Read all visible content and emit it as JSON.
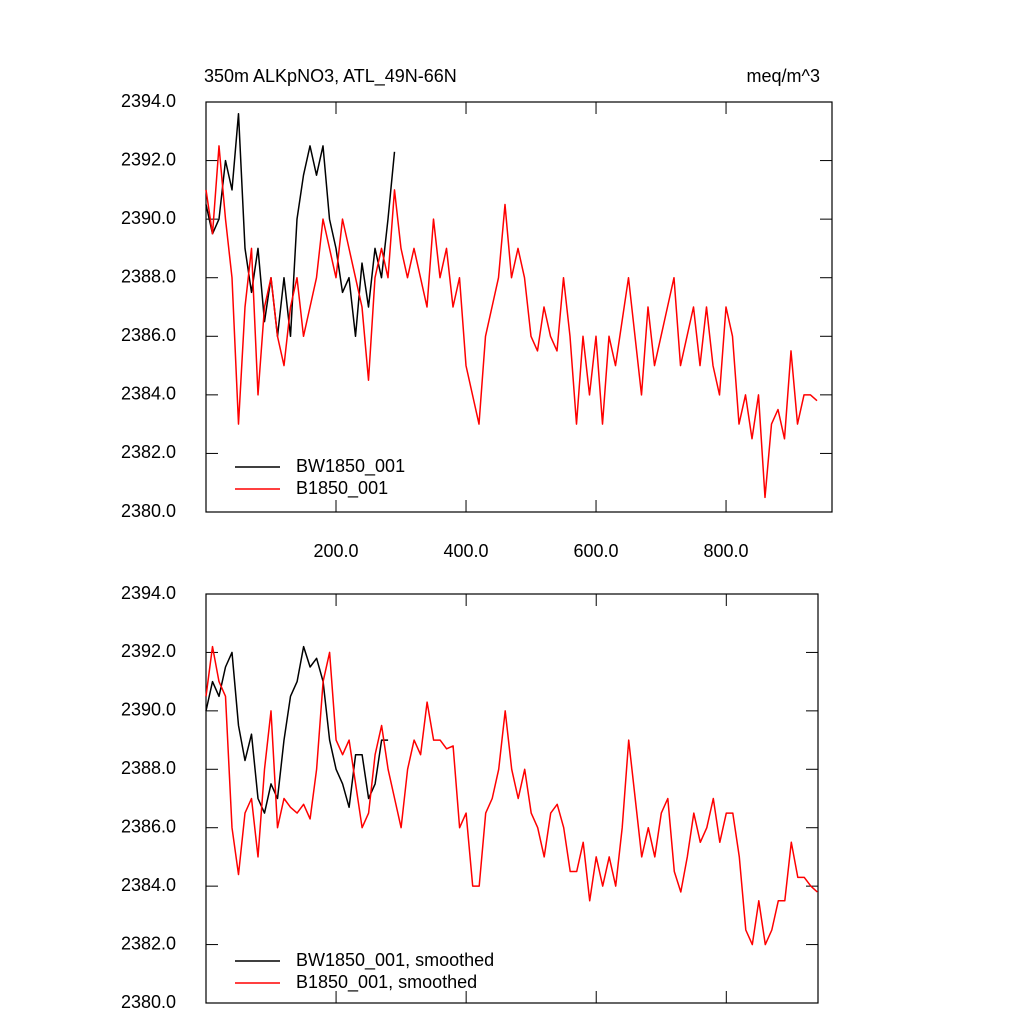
{
  "chart_data": [
    {
      "type": "line",
      "title": "350m ALKpNO3, ATL_49N-66N",
      "units": "meq/m^3",
      "xlim": [
        0,
        963
      ],
      "ylim": [
        2380,
        2394
      ],
      "xticks": [
        {
          "value": 200,
          "label": "200.0"
        },
        {
          "value": 400,
          "label": "400.0"
        },
        {
          "value": 600,
          "label": "600.0"
        },
        {
          "value": 800,
          "label": "800.0"
        }
      ],
      "yticks": [
        {
          "value": 2380,
          "label": "2380.0"
        },
        {
          "value": 2382,
          "label": "2382.0"
        },
        {
          "value": 2384,
          "label": "2384.0"
        },
        {
          "value": 2386,
          "label": "2386.0"
        },
        {
          "value": 2388,
          "label": "2388.0"
        },
        {
          "value": 2390,
          "label": "2390.0"
        },
        {
          "value": 2392,
          "label": "2392.0"
        },
        {
          "value": 2394,
          "label": "2394.0"
        }
      ],
      "show_xtick_labels": true,
      "legend": "lower-left",
      "series": [
        {
          "name": "BW1850_001",
          "color": "#000000",
          "x": [
            0,
            10,
            20,
            30,
            40,
            50,
            60,
            70,
            80,
            90,
            100,
            110,
            120,
            130,
            140,
            150,
            160,
            170,
            180,
            190,
            200,
            210,
            220,
            230,
            240,
            250,
            260,
            270,
            280,
            290
          ],
          "values": [
            2390.5,
            2389.5,
            2390,
            2392,
            2391,
            2393.6,
            2389,
            2387.5,
            2389,
            2386.5,
            2388,
            2386,
            2388,
            2386,
            2390,
            2391.5,
            2392.5,
            2391.5,
            2392.5,
            2390,
            2389,
            2387.5,
            2388,
            2386,
            2388.5,
            2387,
            2389,
            2388,
            2390,
            2392.3
          ]
        },
        {
          "name": "B1850_001",
          "color": "#ff0000",
          "x": [
            0,
            10,
            20,
            30,
            40,
            50,
            60,
            70,
            80,
            90,
            100,
            110,
            120,
            130,
            140,
            150,
            160,
            170,
            180,
            190,
            200,
            210,
            220,
            230,
            240,
            250,
            260,
            270,
            280,
            290,
            300,
            310,
            320,
            330,
            340,
            350,
            360,
            370,
            380,
            390,
            400,
            410,
            420,
            430,
            440,
            450,
            460,
            470,
            480,
            490,
            500,
            510,
            520,
            530,
            540,
            550,
            560,
            570,
            580,
            590,
            600,
            610,
            620,
            630,
            640,
            650,
            660,
            670,
            680,
            690,
            700,
            710,
            720,
            730,
            740,
            750,
            760,
            770,
            780,
            790,
            800,
            810,
            820,
            830,
            840,
            850,
            860,
            870,
            880,
            890,
            900,
            910,
            920,
            930,
            940
          ],
          "values": [
            2391,
            2389.5,
            2392.5,
            2390,
            2388,
            2383,
            2387,
            2389,
            2384,
            2387,
            2388,
            2386,
            2385,
            2387,
            2388,
            2386,
            2387,
            2388,
            2390,
            2389,
            2388,
            2390,
            2389,
            2388,
            2387,
            2384.5,
            2388,
            2389,
            2388,
            2391,
            2389,
            2388,
            2389,
            2388,
            2387,
            2390,
            2388,
            2389,
            2387,
            2388,
            2385,
            2384,
            2383,
            2386,
            2387,
            2388,
            2390.5,
            2388,
            2389,
            2388,
            2386,
            2385.5,
            2387,
            2386,
            2385.5,
            2388,
            2386,
            2383,
            2386,
            2384,
            2386,
            2383,
            2386,
            2385,
            2386.5,
            2388,
            2386,
            2384,
            2387,
            2385,
            2386,
            2387,
            2388,
            2385,
            2386,
            2387,
            2385,
            2387,
            2385,
            2384,
            2387,
            2386,
            2383,
            2384,
            2382.5,
            2384,
            2380.5,
            2383,
            2383.5,
            2382.5,
            2385.5,
            2383,
            2384,
            2384,
            2383.8
          ]
        }
      ]
    },
    {
      "type": "line",
      "xlim": [
        0,
        941
      ],
      "ylim": [
        2380,
        2394
      ],
      "xticks": [
        200,
        400,
        600,
        800
      ],
      "yticks": [
        {
          "value": 2380,
          "label": "2380.0"
        },
        {
          "value": 2382,
          "label": "2382.0"
        },
        {
          "value": 2384,
          "label": "2384.0"
        },
        {
          "value": 2386,
          "label": "2386.0"
        },
        {
          "value": 2388,
          "label": "2388.0"
        },
        {
          "value": 2390,
          "label": "2390.0"
        },
        {
          "value": 2392,
          "label": "2392.0"
        },
        {
          "value": 2394,
          "label": "2394.0"
        }
      ],
      "show_xtick_labels": false,
      "legend": "lower-left",
      "series": [
        {
          "name": "BW1850_001, smoothed",
          "color": "#000000",
          "x": [
            0,
            10,
            20,
            30,
            40,
            50,
            60,
            70,
            80,
            90,
            100,
            110,
            120,
            130,
            140,
            150,
            160,
            170,
            180,
            190,
            200,
            210,
            220,
            230,
            240,
            250,
            260,
            270,
            280
          ],
          "values": [
            2390,
            2391,
            2390.5,
            2391.5,
            2392,
            2389.5,
            2388.3,
            2389.2,
            2387,
            2386.5,
            2387.5,
            2387,
            2389,
            2390.5,
            2391,
            2392.2,
            2391.5,
            2391.8,
            2391,
            2389,
            2388,
            2387.5,
            2386.7,
            2388.5,
            2388.5,
            2387,
            2387.5,
            2389,
            2389
          ]
        },
        {
          "name": "B1850_001, smoothed",
          "color": "#ff0000",
          "x": [
            0,
            10,
            20,
            30,
            40,
            50,
            60,
            70,
            80,
            90,
            100,
            110,
            120,
            130,
            140,
            150,
            160,
            170,
            180,
            190,
            200,
            210,
            220,
            230,
            240,
            250,
            260,
            270,
            280,
            290,
            300,
            310,
            320,
            330,
            340,
            350,
            360,
            370,
            380,
            390,
            400,
            410,
            420,
            430,
            440,
            450,
            460,
            470,
            480,
            490,
            500,
            510,
            520,
            530,
            540,
            550,
            560,
            570,
            580,
            590,
            600,
            610,
            620,
            630,
            640,
            650,
            660,
            670,
            680,
            690,
            700,
            710,
            720,
            730,
            740,
            750,
            760,
            770,
            780,
            790,
            800,
            810,
            820,
            830,
            840,
            850,
            860,
            870,
            880,
            890,
            900,
            910,
            920,
            930,
            940
          ],
          "values": [
            2390.5,
            2392.2,
            2391,
            2390.5,
            2386,
            2384.4,
            2386.5,
            2387,
            2385,
            2388,
            2390,
            2386,
            2387,
            2386.7,
            2386.5,
            2386.8,
            2386.3,
            2388,
            2391,
            2392,
            2389,
            2388.5,
            2389,
            2387.5,
            2386,
            2386.5,
            2388.5,
            2389.5,
            2388,
            2387,
            2386,
            2388,
            2389,
            2388.5,
            2390.3,
            2389,
            2389,
            2388.7,
            2388.8,
            2386,
            2386.5,
            2384,
            2384,
            2386.5,
            2387,
            2388,
            2390,
            2388,
            2387,
            2388,
            2386.5,
            2386,
            2385,
            2386.5,
            2386.8,
            2386,
            2384.5,
            2384.5,
            2385.5,
            2383.5,
            2385,
            2384,
            2385,
            2384,
            2386,
            2389,
            2387,
            2385,
            2386,
            2385,
            2386.5,
            2387,
            2384.5,
            2383.8,
            2385,
            2386.5,
            2385.5,
            2386,
            2387,
            2385.5,
            2386.5,
            2386.5,
            2385,
            2382.5,
            2382,
            2383.5,
            2382,
            2382.5,
            2383.5,
            2383.5,
            2385.5,
            2384.3,
            2384.3,
            2384,
            2383.8
          ]
        }
      ]
    }
  ]
}
